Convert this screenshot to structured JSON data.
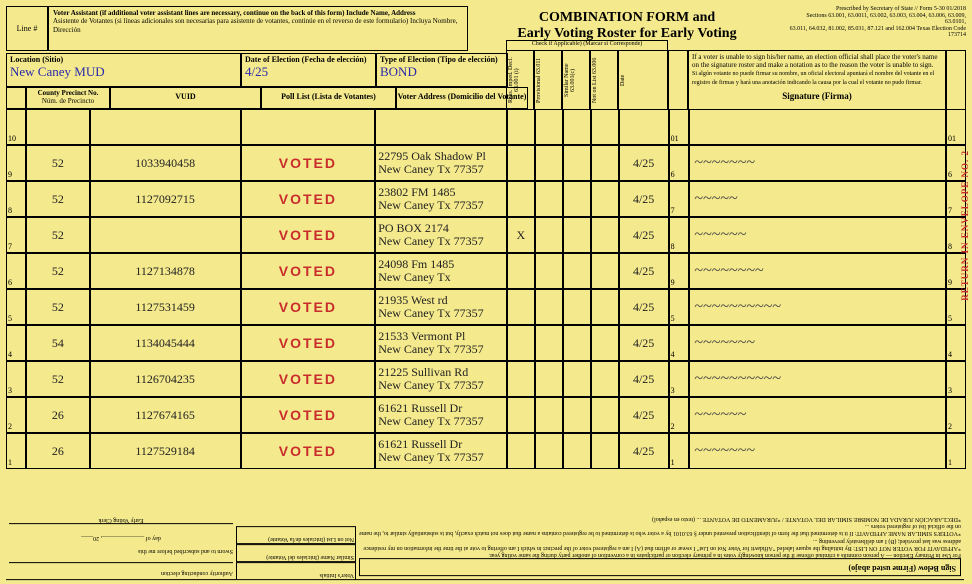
{
  "header": {
    "line_label": "Line #",
    "assistant_en": "Voter Assistant (if additional voter assistant lines are necessary, continue on the back of this form)  Include Name, Address",
    "assistant_es": "Asistente de Votantes (si líneas adicionales son necesarias para asistente de votantes, continúe en el reverso de este formulario) Incluya Nombre, Dirección",
    "form_title_1": "COMBINATION FORM and",
    "form_title_2": "Early Voting Roster for Early Voting",
    "prescribe_1": "Prescribed by Secretary of State // Form 5-30        01/2018",
    "prescribe_2": "Sections 63.001, 63.0011, 63.002, 63.003, 63.004, 63.006, 63.009, 63.0101,",
    "prescribe_3": "63.011, 64.032, 81.002, 85.031, 87.121 and 162.004 Texas Election Code",
    "prescribe_4": "173714"
  },
  "meta": {
    "location_label": "Location (Sitio)",
    "location_value": "New Caney MUD",
    "doe_label": "Date of Election (Fecha de elección)",
    "doe_value": "4/25",
    "toe_label": "Type of Election (Tipo de elección)",
    "toe_value": "BOND",
    "cpn_label_1": "County Precinct No.",
    "cpn_label_2": "Núm. de Precincto",
    "vuid_label": "VUID",
    "plist_label": "Poll List (Lista de Votantes)",
    "vaddr_label": "Voter Address (Domicilio del Votante)"
  },
  "vcols": {
    "check_label": "Check if Applicable) (Marcar si Corresponde)",
    "c1": "Reas. Imped. Decl. 63.001 (i)",
    "c2": "Provisional 63.011",
    "c3": "Similar Name 63.001(c)",
    "c4": "Not on List 63.006",
    "date": "Date"
  },
  "sigbox": {
    "en": "If a voter is unable to sign his/her name, an election official shall place the voter's name on the signature roster and make a notation as to the reason the voter is unable to sign.",
    "es": "Si algún votante no puede firmar su nombre, un oficial electoral apuntará el nombre del votante en el registro de firmas y hará una anotación indicando la causa por la cual el votante no pudo firmar.",
    "label": "Signature (Firma)"
  },
  "rows": [
    {
      "n": "10",
      "pct": "",
      "vuid": "",
      "voted": "",
      "addr1": "",
      "addr2": "",
      "x": "",
      "date": "",
      "rn": "01",
      "sig": ""
    },
    {
      "n": "9",
      "pct": "52",
      "vuid": "1033940458",
      "voted": "VOTED",
      "addr1": "22795 Oak Shadow Pl",
      "addr2": "New Caney Tx 77357",
      "x": "",
      "date": "4/25",
      "rn": "6",
      "sig": "~~~~~~~"
    },
    {
      "n": "8",
      "pct": "52",
      "vuid": "1127092715",
      "voted": "VOTED",
      "addr1": "23802 FM 1485",
      "addr2": "New Caney Tx 77357",
      "x": "",
      "date": "4/25",
      "rn": "7",
      "sig": "~~~~~"
    },
    {
      "n": "7",
      "pct": "52",
      "vuid": "",
      "voted": "VOTED",
      "addr1": "PO BOX 2174",
      "addr2": "New Caney Tx 77357",
      "x": "X",
      "date": "4/25",
      "rn": "8",
      "sig": "~~~~~~"
    },
    {
      "n": "6",
      "pct": "52",
      "vuid": "1127134878",
      "voted": "VOTED",
      "addr1": "24098 Fm 1485",
      "addr2": "New Caney Tx",
      "x": "",
      "date": "4/25",
      "rn": "9",
      "sig": "~~~~~~~~"
    },
    {
      "n": "5",
      "pct": "52",
      "vuid": "1127531459",
      "voted": "VOTED",
      "addr1": "21935 West rd",
      "addr2": "New Caney Tx 77357",
      "x": "",
      "date": "4/25",
      "rn": "5",
      "sig": "~~~~~~~~~~"
    },
    {
      "n": "4",
      "pct": "54",
      "vuid": "1134045444",
      "voted": "VOTED",
      "addr1": "21533 Vermont Pl",
      "addr2": "New Caney Tx 77357",
      "x": "",
      "date": "4/25",
      "rn": "4",
      "sig": "~~~~~~~"
    },
    {
      "n": "3",
      "pct": "52",
      "vuid": "1126704235",
      "voted": "VOTED",
      "addr1": "21225 Sullivan Rd",
      "addr2": "New Caney Tx 77357",
      "x": "",
      "date": "4/25",
      "rn": "3",
      "sig": "~~~~~~~~~~"
    },
    {
      "n": "2",
      "pct": "26",
      "vuid": "1127674165",
      "voted": "VOTED",
      "addr1": "61621 Russell Dr",
      "addr2": "New Caney Tx 77357",
      "x": "",
      "date": "4/25",
      "rn": "2",
      "sig": "~~~~~~"
    },
    {
      "n": "1",
      "pct": "26",
      "vuid": "1127529184",
      "voted": "VOTED",
      "addr1": "61621 Russell Dr",
      "addr2": "New Caney Tx 77357",
      "x": "",
      "date": "4/25",
      "rn": "1",
      "sig": "~~~~~~~"
    }
  ],
  "bottom": {
    "sign_below": "Sign Below (Firme usted abajo)",
    "aff1": "*AFFIDAVIT FOR VOTER NOT ON LIST: By initialing the square labeled \"Affidavit for Voter Not on List\" I swear or affirm that (A) I am a registered voter of the precinct in which I am offering to vote at the time the information on my residence address was last provided; (B) I am deliberately preventing ...",
    "aff2": "*VOTER'S SIMILAR NAME AFFIDAVIT: If it is determined that the form of identification presented under § 63.0101 by a voter who is determined to be registered contains a name that does not match exactly, but is substantially similar to, the name on the official list of registered voters ...",
    "aff_es": "*DECLARACIÓN JURADA DE NOMBRE SIMILAR DEL VOTANTE / *JURAMENTO DE VOTANTE ... (texto en español)",
    "primary": "For Use in Primary Election — A person commits a criminal offense if the person knowingly votes in a primary election or participates in a convention of another party during the same voting year.",
    "box1": "Voter's Initials",
    "box2": "Similar Name (Iniciales del Votante)",
    "box3": "Not on List (Iniciales de/la Votante)",
    "auth_label": "Authority conducting election",
    "sworn": "Sworn to and subscribed before me this",
    "day_of": "day of ______________, 20____",
    "clerk": "Early Voting Clerk"
  },
  "side_label": "RETURN IN ENVELOPE NO. 2"
}
